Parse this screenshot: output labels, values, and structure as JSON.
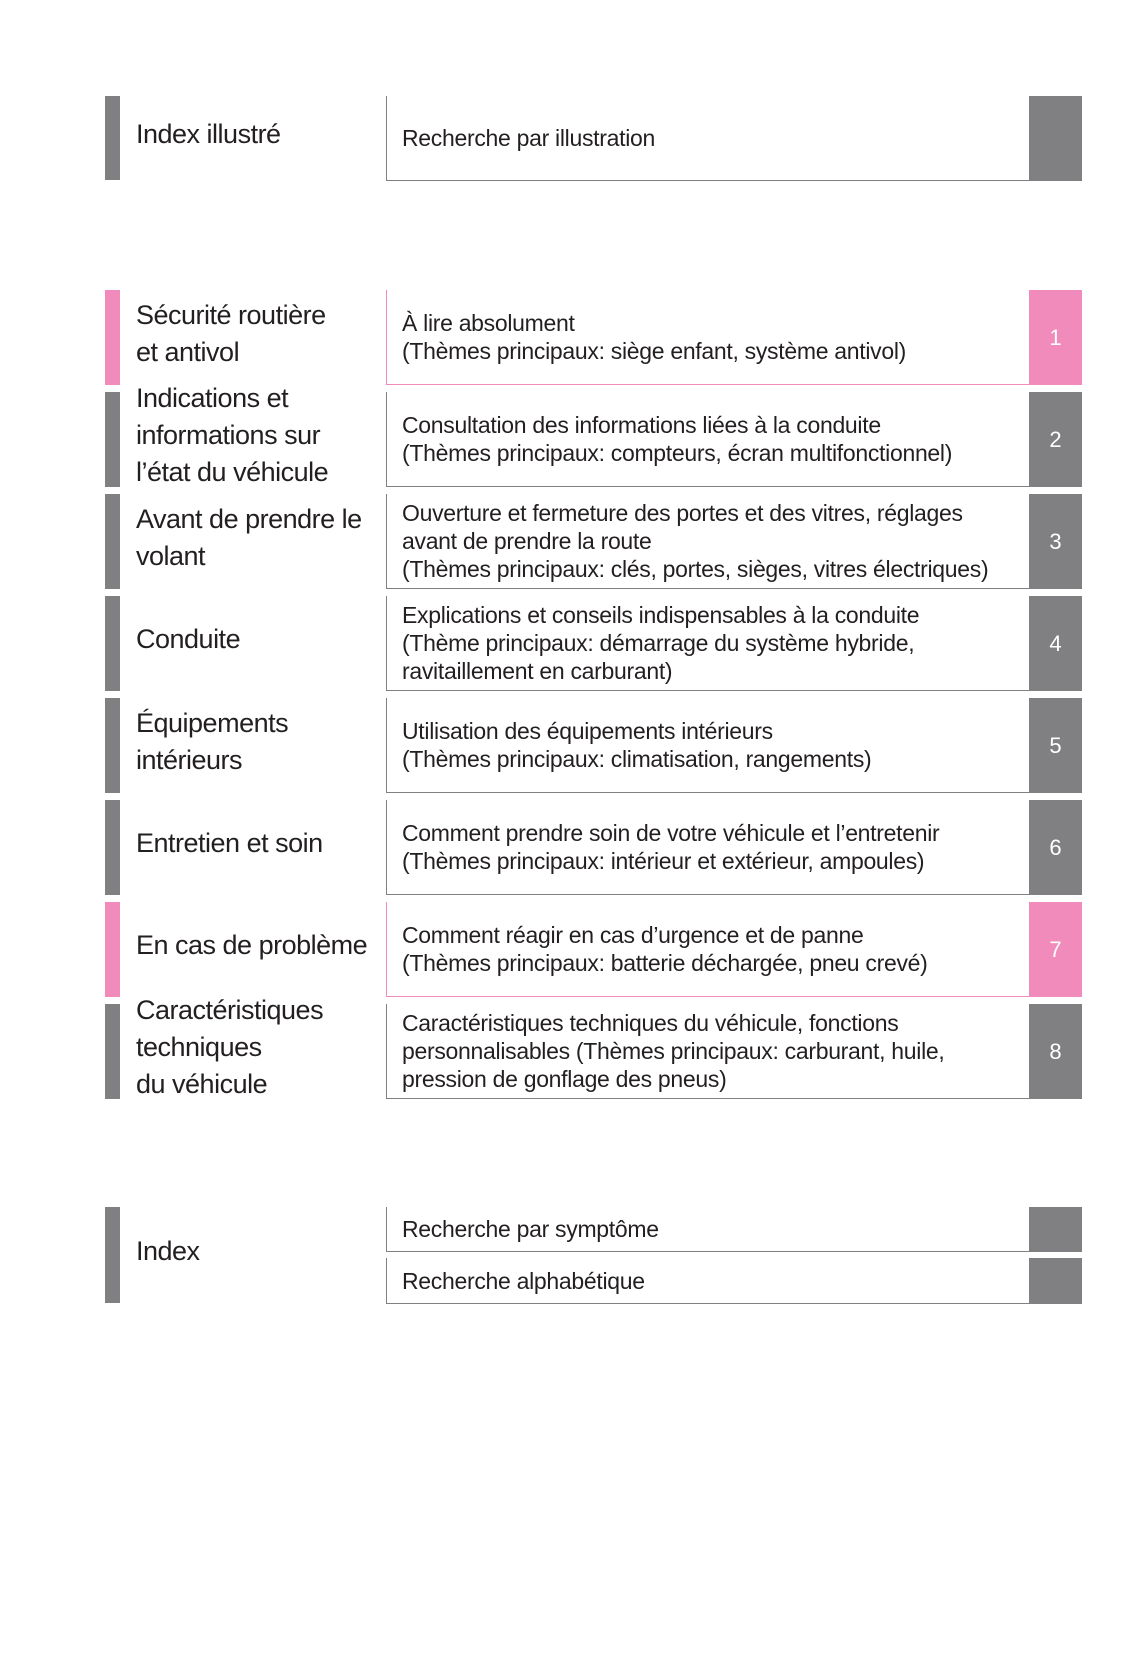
{
  "colors": {
    "grey": "#808083",
    "pink": "#f08bbb"
  },
  "top": {
    "title": "Index illustré",
    "description": "Recherche par illustration"
  },
  "chapters": [
    {
      "title": "Sécurité routière\net antivol",
      "description": "À lire absolument\n(Thèmes principaux: siège enfant, système antivol)",
      "number": "1",
      "color": "pink"
    },
    {
      "title": "Indications et\ninformations sur\nl’état du véhicule",
      "description": "Consultation des informations liées à la conduite\n(Thèmes principaux: compteurs, écran multifonctionnel)",
      "number": "2",
      "color": "grey"
    },
    {
      "title": "Avant de prendre le\nvolant",
      "description": "Ouverture et fermeture des portes et des vitres, réglages\navant de prendre la route\n(Thèmes principaux: clés, portes, sièges, vitres électriques)",
      "number": "3",
      "color": "grey"
    },
    {
      "title": "Conduite",
      "description": "Explications et conseils indispensables à la conduite\n(Thème principaux: démarrage du système hybride,\nravitaillement en carburant)",
      "number": "4",
      "color": "grey"
    },
    {
      "title": "Équipements\nintérieurs",
      "description": "Utilisation des équipements intérieurs\n(Thèmes principaux: climatisation, rangements)",
      "number": "5",
      "color": "grey"
    },
    {
      "title": "Entretien et soin",
      "description": "Comment prendre soin de votre véhicule et l’entretenir\n(Thèmes principaux: intérieur et extérieur, ampoules)",
      "number": "6",
      "color": "grey"
    },
    {
      "title": "En cas de problème",
      "description": "Comment réagir en cas d’urgence et de panne\n(Thèmes principaux: batterie déchargée, pneu crevé)",
      "number": "7",
      "color": "pink"
    },
    {
      "title": "Caractéristiques\ntechniques\ndu véhicule",
      "description": "Caractéristiques techniques du véhicule, fonctions\npersonnalisables (Thèmes principaux: carburant, huile,\npression de gonflage des pneus)",
      "number": "8",
      "color": "grey"
    }
  ],
  "index": {
    "title": "Index",
    "items": [
      "Recherche par symptôme",
      "Recherche alphabétique"
    ]
  }
}
